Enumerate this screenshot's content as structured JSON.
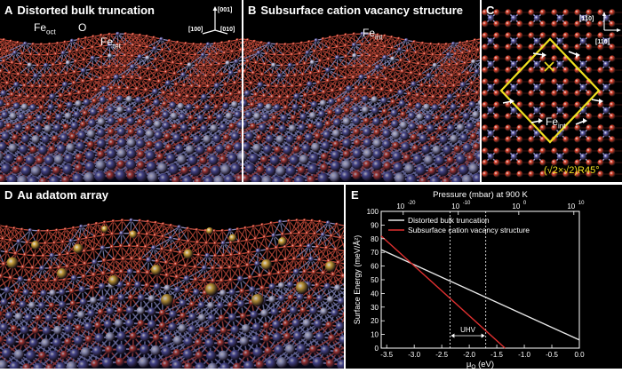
{
  "panels": {
    "a": {
      "letter": "A",
      "title": "Distorted bulk truncation",
      "label_feoct": "Fe",
      "label_feoct_sub": "oct",
      "label_o": "O",
      "label_fetet": "Fe",
      "label_fetet_sub": "tet",
      "axis_001": "[001]",
      "axis_100": "[100]",
      "axis_010": "[010]"
    },
    "b": {
      "letter": "B",
      "title": "Subsurface cation vacancy structure",
      "label_feint": "Fe",
      "label_feint_sub": "int"
    },
    "c": {
      "letter": "C",
      "axis_110": "[1̅1̅0]",
      "axis_110b": "[110]",
      "label_feint": "Fe",
      "label_feint_sub": "int",
      "cell_label": "(√2×√2)R45°"
    },
    "d": {
      "letter": "D",
      "title": "Au adatom array"
    },
    "e": {
      "letter": "E",
      "uhv_label": "UHV"
    }
  },
  "colors": {
    "oxygen": "#d8402a",
    "fe_oct": "#5a5aa8",
    "fe_tet": "#b4b8dc",
    "gold": "#d4a83a",
    "cell": "#f0e020",
    "line_bulk": "#e8e8e8",
    "line_vac": "#e03030"
  },
  "chart_data": {
    "type": "line",
    "title": "",
    "xlabel": "μ",
    "xlabel_sub": "O",
    "xlabel_unit": "(eV)",
    "ylabel": "Surface Energy (meV/Å²)",
    "top_axis_label": "Pressure (mbar) at 900 K",
    "xlim": [
      -3.6,
      0.0
    ],
    "ylim": [
      0,
      100
    ],
    "x_ticks": [
      "-3.5",
      "-3.0",
      "-2.5",
      "-2.0",
      "-1.5",
      "-1.0",
      "-0.5",
      "0.0"
    ],
    "x_tick_values": [
      -3.5,
      -3.0,
      -2.5,
      -2.0,
      -1.5,
      -1.0,
      -0.5,
      0.0
    ],
    "y_ticks": [
      "0",
      "10",
      "20",
      "30",
      "40",
      "50",
      "60",
      "70",
      "80",
      "90",
      "100"
    ],
    "y_tick_values": [
      0,
      10,
      20,
      30,
      40,
      50,
      60,
      70,
      80,
      90,
      100
    ],
    "top_ticks": [
      {
        "label": "10",
        "exp": "-20",
        "x": -3.2
      },
      {
        "label": "10",
        "exp": "-10",
        "x": -2.2
      },
      {
        "label": "10",
        "exp": "0",
        "x": -1.1
      },
      {
        "label": "10",
        "exp": "10",
        "x": -0.1
      }
    ],
    "uhv_range": [
      -2.35,
      -1.7
    ],
    "legend_position": "top-left",
    "series": [
      {
        "name": "Distorted bulk truncation",
        "color": "#e8e8e8",
        "x": [
          -3.6,
          0.0
        ],
        "y": [
          72,
          6
        ]
      },
      {
        "name": "Subsurface cation vacancy structure",
        "color": "#e03030",
        "x": [
          -3.6,
          -1.35
        ],
        "y": [
          82,
          0
        ]
      }
    ]
  }
}
